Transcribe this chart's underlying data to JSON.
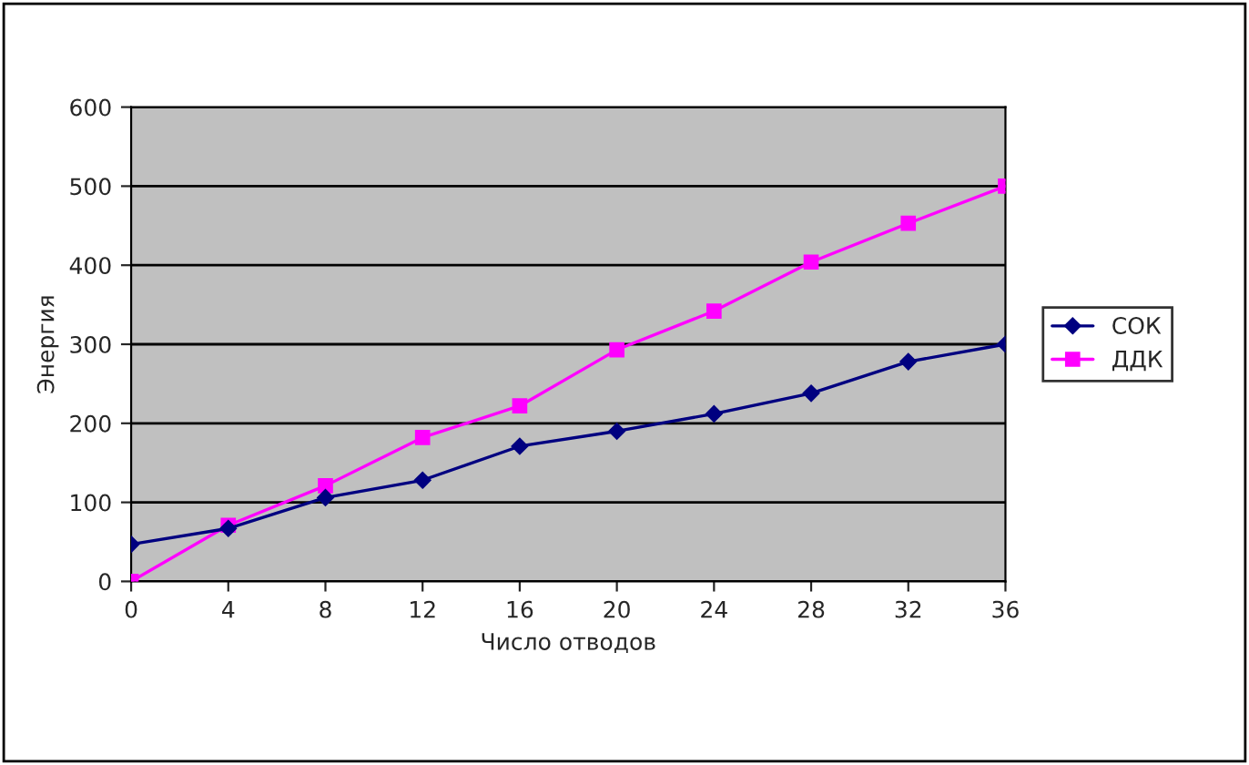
{
  "chart_data": {
    "type": "line",
    "xlabel": "Число отводов",
    "ylabel": "Энергия",
    "x": [
      0,
      4,
      8,
      12,
      16,
      20,
      24,
      28,
      32,
      36
    ],
    "series": [
      {
        "name": "СОК",
        "color": "#000080",
        "marker": "diamond",
        "values": [
          47,
          67,
          106,
          128,
          171,
          190,
          212,
          238,
          278,
          300
        ]
      },
      {
        "name": "ДДК",
        "color": "#ff00ff",
        "marker": "square",
        "values": [
          0,
          71,
          121,
          182,
          222,
          293,
          342,
          404,
          453,
          500
        ]
      }
    ],
    "xlim": [
      0,
      36
    ],
    "xticks": [
      0,
      4,
      8,
      12,
      16,
      20,
      24,
      28,
      32,
      36
    ],
    "ylim": [
      0,
      600
    ],
    "yticks": [
      0,
      100,
      200,
      300,
      400,
      500,
      600
    ],
    "grid": "y",
    "legend": "right"
  }
}
